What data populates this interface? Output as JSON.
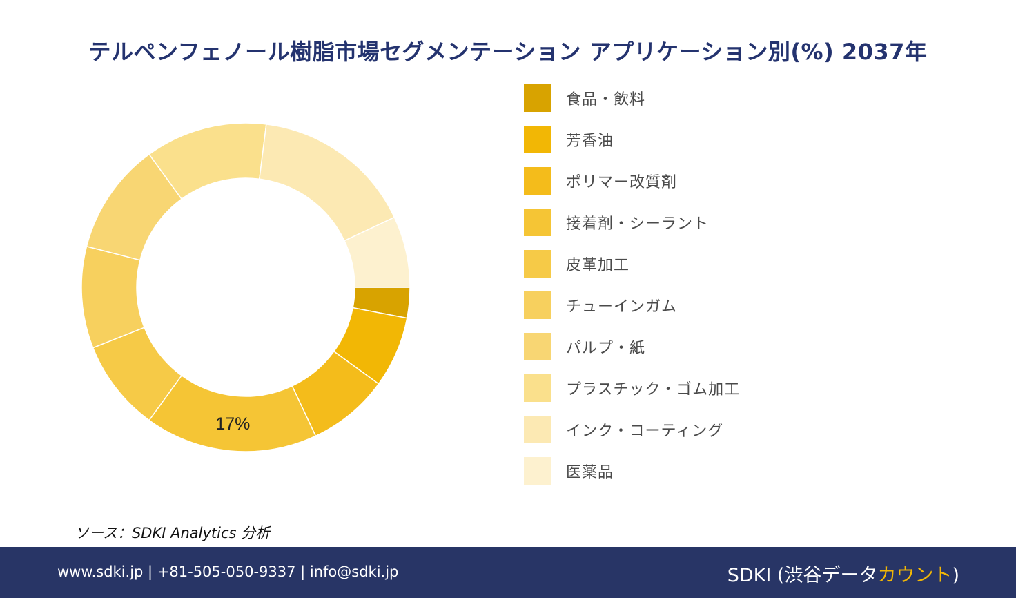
{
  "title": "テルペンフェノール樹脂市場セグメンテーション アプリケーション別(%) 2037年",
  "chart_data": {
    "type": "pie",
    "donut": true,
    "categories": [
      "食品・飲料",
      "芳香油",
      "ポリマー改質剤",
      "接着剤・シーラント",
      "皮革加工",
      "チューインガム",
      "パルプ・紙",
      "プラスチック・ゴム加工",
      "インク・コーティング",
      "医薬品"
    ],
    "values": [
      3,
      7,
      8,
      17,
      9,
      10,
      11,
      12,
      16,
      7
    ],
    "colors": [
      "#d8a300",
      "#f2b705",
      "#f4bc1b",
      "#f5c535",
      "#f6ca47",
      "#f7d05e",
      "#f8d673",
      "#fae08c",
      "#fce9b3",
      "#fdf1cf"
    ],
    "data_labels": [
      {
        "index": 3,
        "text": "17%"
      }
    ],
    "legend_position": "right"
  },
  "legend": {
    "items": [
      {
        "label": "食品・飲料",
        "color": "#d8a300"
      },
      {
        "label": "芳香油",
        "color": "#f2b705"
      },
      {
        "label": "ポリマー改質剤",
        "color": "#f4bc1b"
      },
      {
        "label": "接着剤・シーラント",
        "color": "#f5c535"
      },
      {
        "label": "皮革加工",
        "color": "#f6ca47"
      },
      {
        "label": "チューインガム",
        "color": "#f7d05e"
      },
      {
        "label": "パルプ・紙",
        "color": "#f8d673"
      },
      {
        "label": "プラスチック・ゴム加工",
        "color": "#fae08c"
      },
      {
        "label": "インク・コーティング",
        "color": "#fce9b3"
      },
      {
        "label": "医薬品",
        "color": "#fdf1cf"
      }
    ]
  },
  "source": "ソース：SDKI Analytics 分析",
  "footer": {
    "contact": "www.sdki.jp | +81-505-050-9337 | info@sdki.jp",
    "brand_main": "SDKI (渋谷データ",
    "brand_accent": "カウント",
    "brand_end": ")"
  }
}
